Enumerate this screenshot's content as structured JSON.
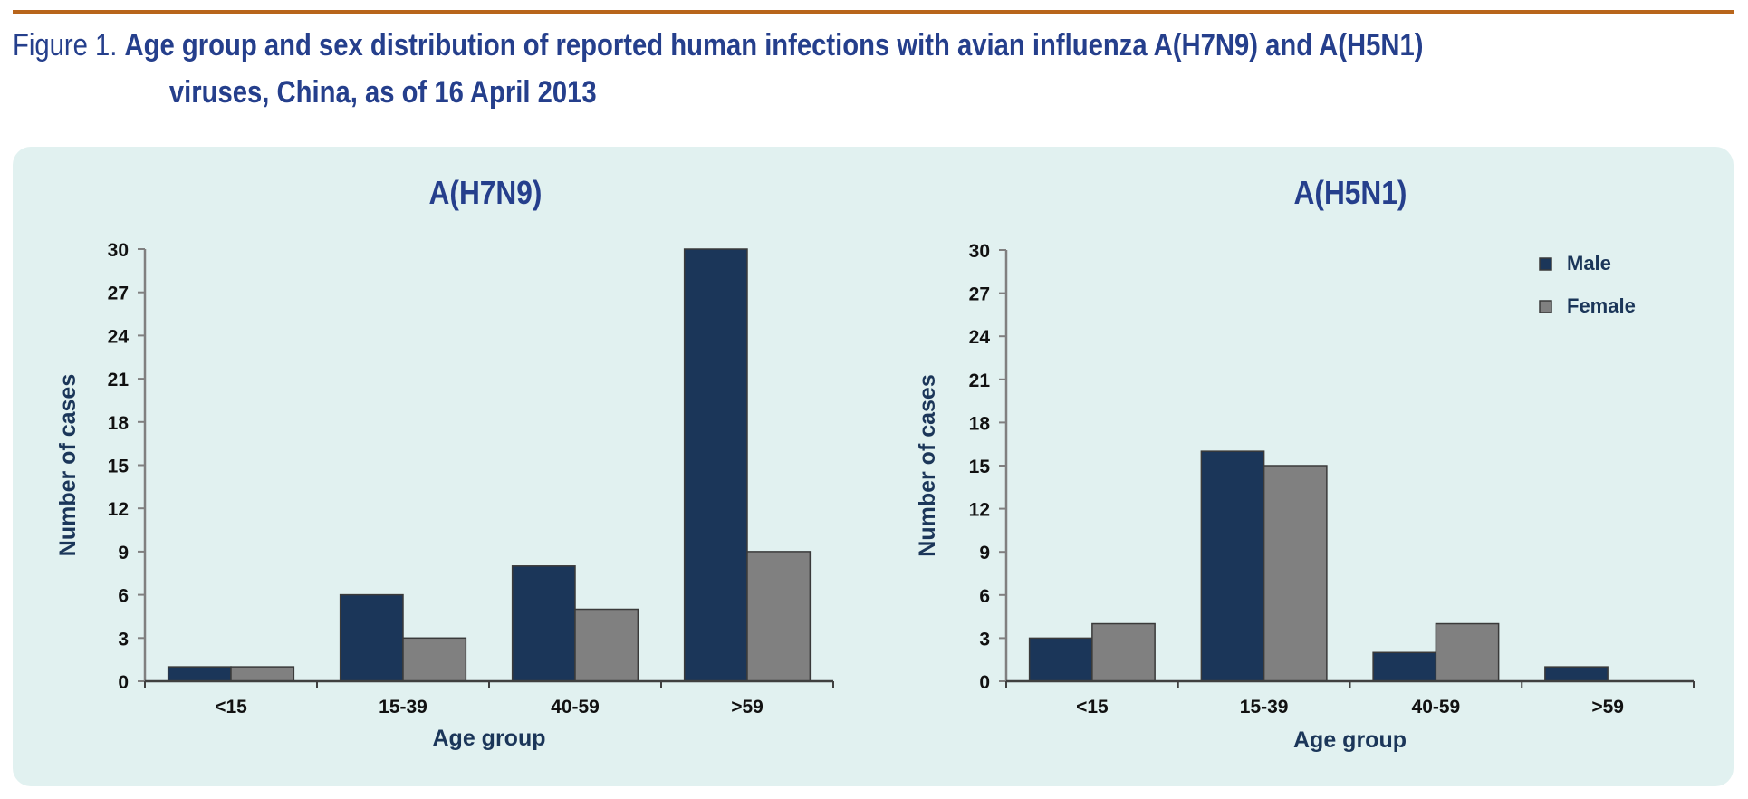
{
  "figure": {
    "label": "Figure 1.",
    "title_line1": "Age group and sex distribution of reported human infections with avian influenza A(H7N9) and A(H5N1)",
    "title_line2": "viruses, China, as of 16 April 2013"
  },
  "colors": {
    "male": "#1b3659",
    "female": "#808080",
    "title": "#253f8c",
    "accent_bar": "#b8651b",
    "panel_bg": "#e1f1f0",
    "axis_title": "#1b3659"
  },
  "chart_data": [
    {
      "type": "bar",
      "title": "A(H7N9)",
      "xlabel": "Age group",
      "ylabel": "Number of cases",
      "categories": [
        "<15",
        "15-39",
        "40-59",
        ">59"
      ],
      "series": [
        {
          "name": "Male",
          "values": [
            1,
            6,
            8,
            30
          ]
        },
        {
          "name": "Female",
          "values": [
            1,
            3,
            5,
            9
          ]
        }
      ],
      "ylim": [
        0,
        30
      ],
      "yticks": [
        0,
        3,
        6,
        9,
        12,
        15,
        18,
        21,
        24,
        27,
        30
      ],
      "grid": false,
      "legend": "none"
    },
    {
      "type": "bar",
      "title": "A(H5N1)",
      "xlabel": "Age group",
      "ylabel": "Number of cases",
      "categories": [
        "<15",
        "15-39",
        "40-59",
        ">59"
      ],
      "series": [
        {
          "name": "Male",
          "values": [
            3,
            16,
            2,
            1
          ]
        },
        {
          "name": "Female",
          "values": [
            4,
            15,
            4,
            0
          ]
        }
      ],
      "ylim": [
        0,
        30
      ],
      "yticks": [
        0,
        3,
        6,
        9,
        12,
        15,
        18,
        21,
        24,
        27,
        30
      ],
      "grid": false,
      "legend": "top-right"
    }
  ]
}
